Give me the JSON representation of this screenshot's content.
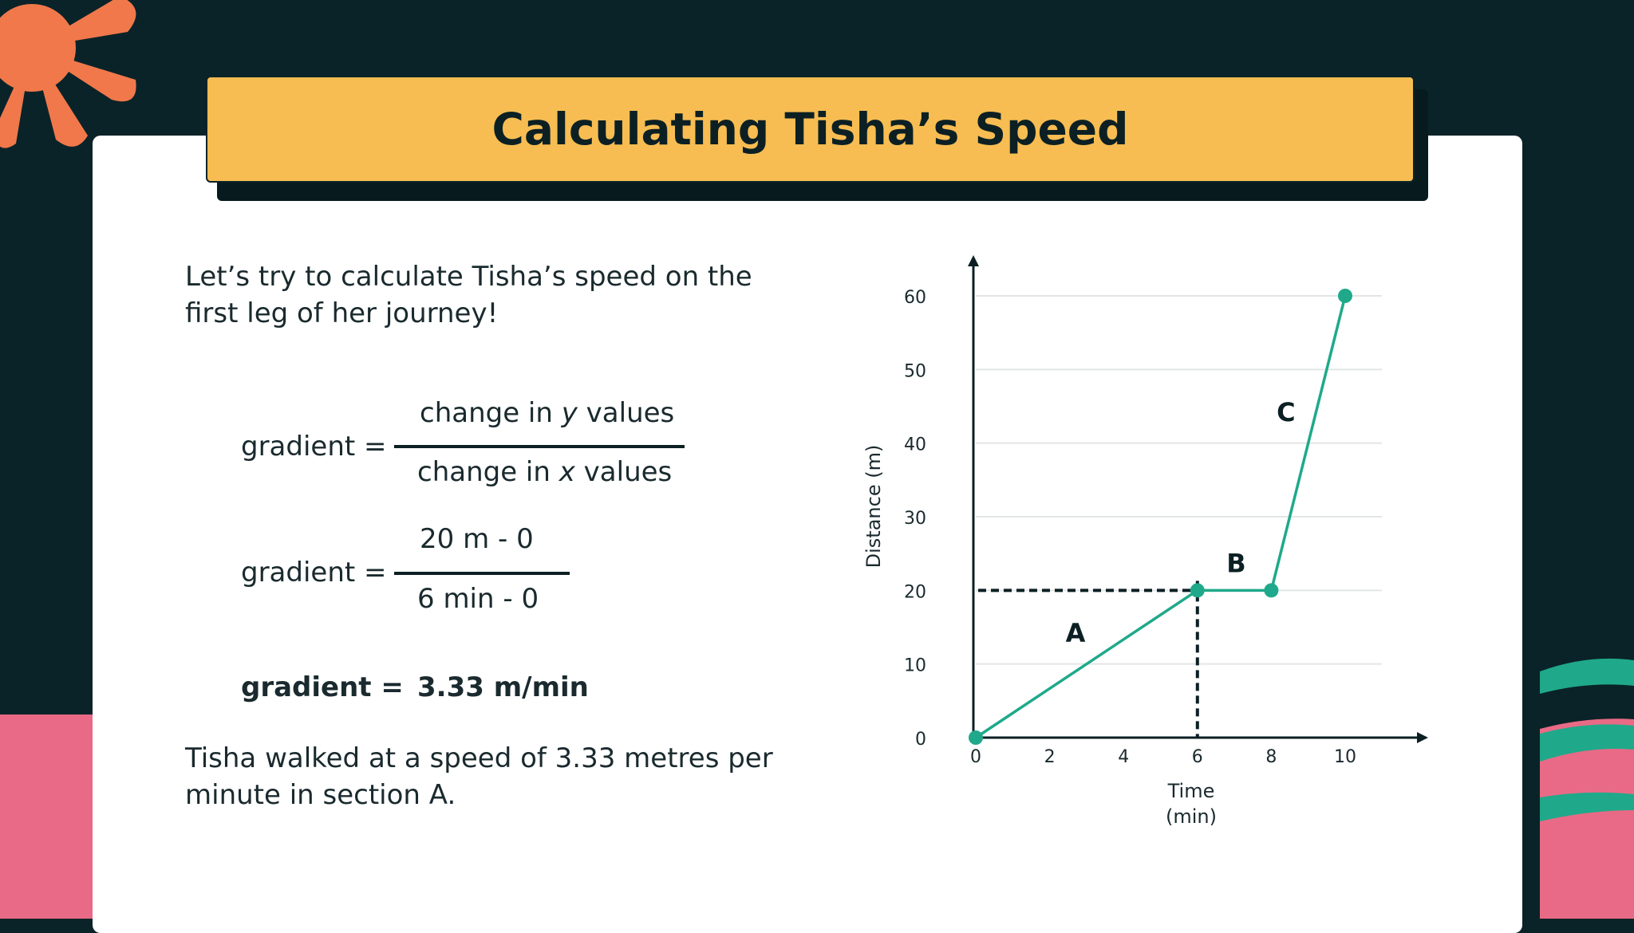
{
  "title": "Calculating Tisha’s Speed",
  "intro": "Let’s try to calculate Tisha’s speed on the first leg of her journey!",
  "formula": {
    "lhs": "gradient =",
    "numerator_pre": "change in ",
    "numerator_var": "y",
    "numerator_post": " values",
    "denominator_pre": "change in ",
    "denominator_var": "x",
    "denominator_post": " values"
  },
  "substitution": {
    "lhs": "gradient =",
    "numerator": "20 m - 0",
    "denominator": "6 min - 0"
  },
  "result": {
    "lhs": "gradient =",
    "value": "3.33 m/min"
  },
  "conclusion": "Tisha walked at a speed of 3.33 metres per minute in section A.",
  "colors": {
    "background": "#0a2328",
    "banner": "#f7bd52",
    "line": "#1fa98a",
    "accent_orange": "#f0784b",
    "accent_pink": "#e96a86"
  },
  "chart_data": {
    "type": "line",
    "x": [
      0,
      6,
      8,
      10
    ],
    "y": [
      0,
      20,
      20,
      60
    ],
    "xlabel_line1": "Time",
    "xlabel_line2": "(min)",
    "ylabel": "Distance (m)",
    "xlim": [
      0,
      10
    ],
    "ylim": [
      0,
      60
    ],
    "xticks": [
      0,
      2,
      4,
      6,
      8,
      10
    ],
    "yticks": [
      0,
      10,
      20,
      30,
      40,
      50,
      60
    ],
    "grid": true,
    "section_labels": [
      {
        "text": "A",
        "x": 2.7,
        "y": 13
      },
      {
        "text": "B",
        "x": 7.05,
        "y": 22.5
      },
      {
        "text": "C",
        "x": 8.4,
        "y": 43
      }
    ],
    "guide_point": {
      "x": 6,
      "y": 20
    }
  }
}
